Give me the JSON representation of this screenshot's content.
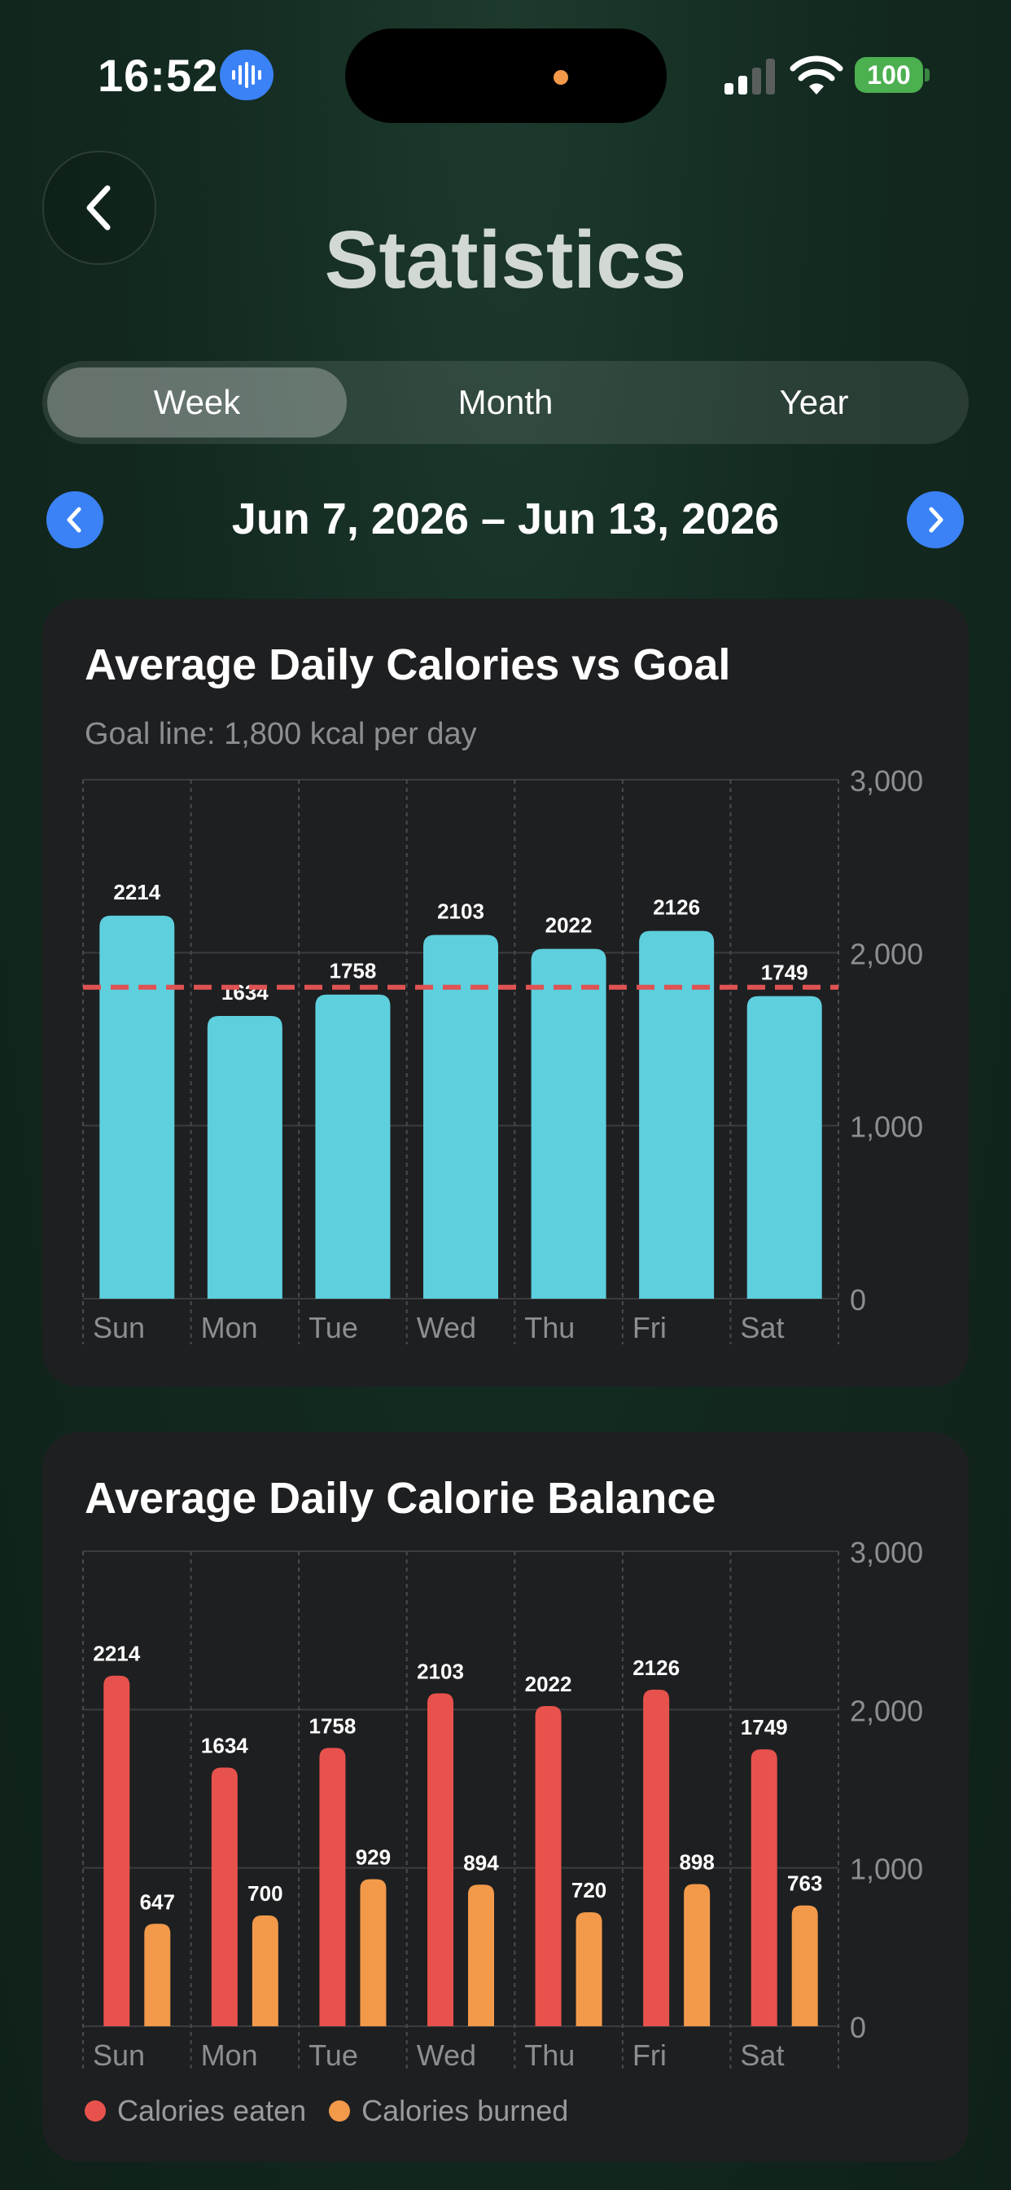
{
  "status": {
    "time": "16:52",
    "battery": "100"
  },
  "icons": {
    "voice": "waveform-icon",
    "signal": "cellular-signal-icon",
    "wifi": "wifi-icon",
    "back": "chevron-left-icon",
    "prev": "chevron-left-icon",
    "next": "chevron-right-icon"
  },
  "page": {
    "title": "Statistics"
  },
  "segments": [
    "Week",
    "Month",
    "Year"
  ],
  "selected_segment": "Week",
  "date_range": "Jun 7, 2026 – Jun 13, 2026",
  "colors": {
    "bar": "#5ecfdd",
    "goal": "#e05252",
    "eaten": "#e8524c",
    "burned": "#f29a4a",
    "accent": "#3b82f6"
  },
  "chart_data": [
    {
      "type": "bar",
      "title": "Average Daily Calories vs Goal",
      "subtitle": "Goal line: 1,800 kcal per day",
      "categories": [
        "Sun",
        "Mon",
        "Tue",
        "Wed",
        "Thu",
        "Fri",
        "Sat"
      ],
      "values": [
        2214,
        1634,
        1758,
        2103,
        2022,
        2126,
        1749
      ],
      "goal": 1800,
      "ylim": [
        0,
        3000
      ],
      "yticks": [
        0,
        1000,
        2000,
        3000
      ],
      "ytick_labels": [
        "0",
        "1,000",
        "2,000",
        "3,000"
      ],
      "grid": true
    },
    {
      "type": "bar",
      "title": "Average Daily Calorie Balance",
      "categories": [
        "Sun",
        "Mon",
        "Tue",
        "Wed",
        "Thu",
        "Fri",
        "Sat"
      ],
      "series": [
        {
          "name": "Calories eaten",
          "values": [
            2214,
            1634,
            1758,
            2103,
            2022,
            2126,
            1749
          ]
        },
        {
          "name": "Calories burned",
          "values": [
            647,
            700,
            929,
            894,
            720,
            898,
            763
          ]
        }
      ],
      "ylim": [
        0,
        3000
      ],
      "yticks": [
        0,
        1000,
        2000,
        3000
      ],
      "ytick_labels": [
        "0",
        "1,000",
        "2,000",
        "3,000"
      ],
      "grid": true,
      "legend": "bottom-left"
    }
  ]
}
